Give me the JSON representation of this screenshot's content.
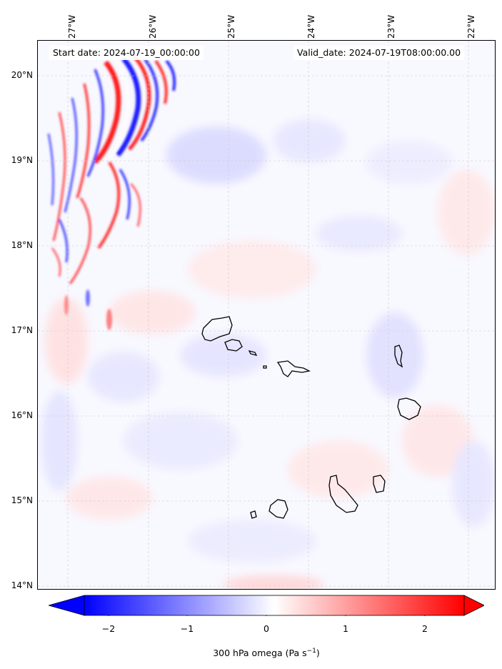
{
  "map": {
    "header": {
      "start_date": "Start date: 2024-07-19_00:00:00",
      "valid_date": "Valid_date: 2024-07-19T08:00:00.00"
    },
    "lon_labels": [
      "27°W",
      "26°W",
      "25°W",
      "24°W",
      "23°W",
      "22°W"
    ],
    "lat_labels": [
      "20°N",
      "19°N",
      "18°N",
      "17°N",
      "16°N",
      "15°N",
      "14°N"
    ],
    "colorbar": {
      "ticks": [
        "−2",
        "−1",
        "0",
        "1",
        "2"
      ],
      "label": "300 hPa omega (Pa s",
      "label_sup": "−1",
      "label_end": ")",
      "colors": {
        "min": "#0000ff",
        "mid": "#ffffff",
        "max": "#ff0000"
      }
    }
  }
}
